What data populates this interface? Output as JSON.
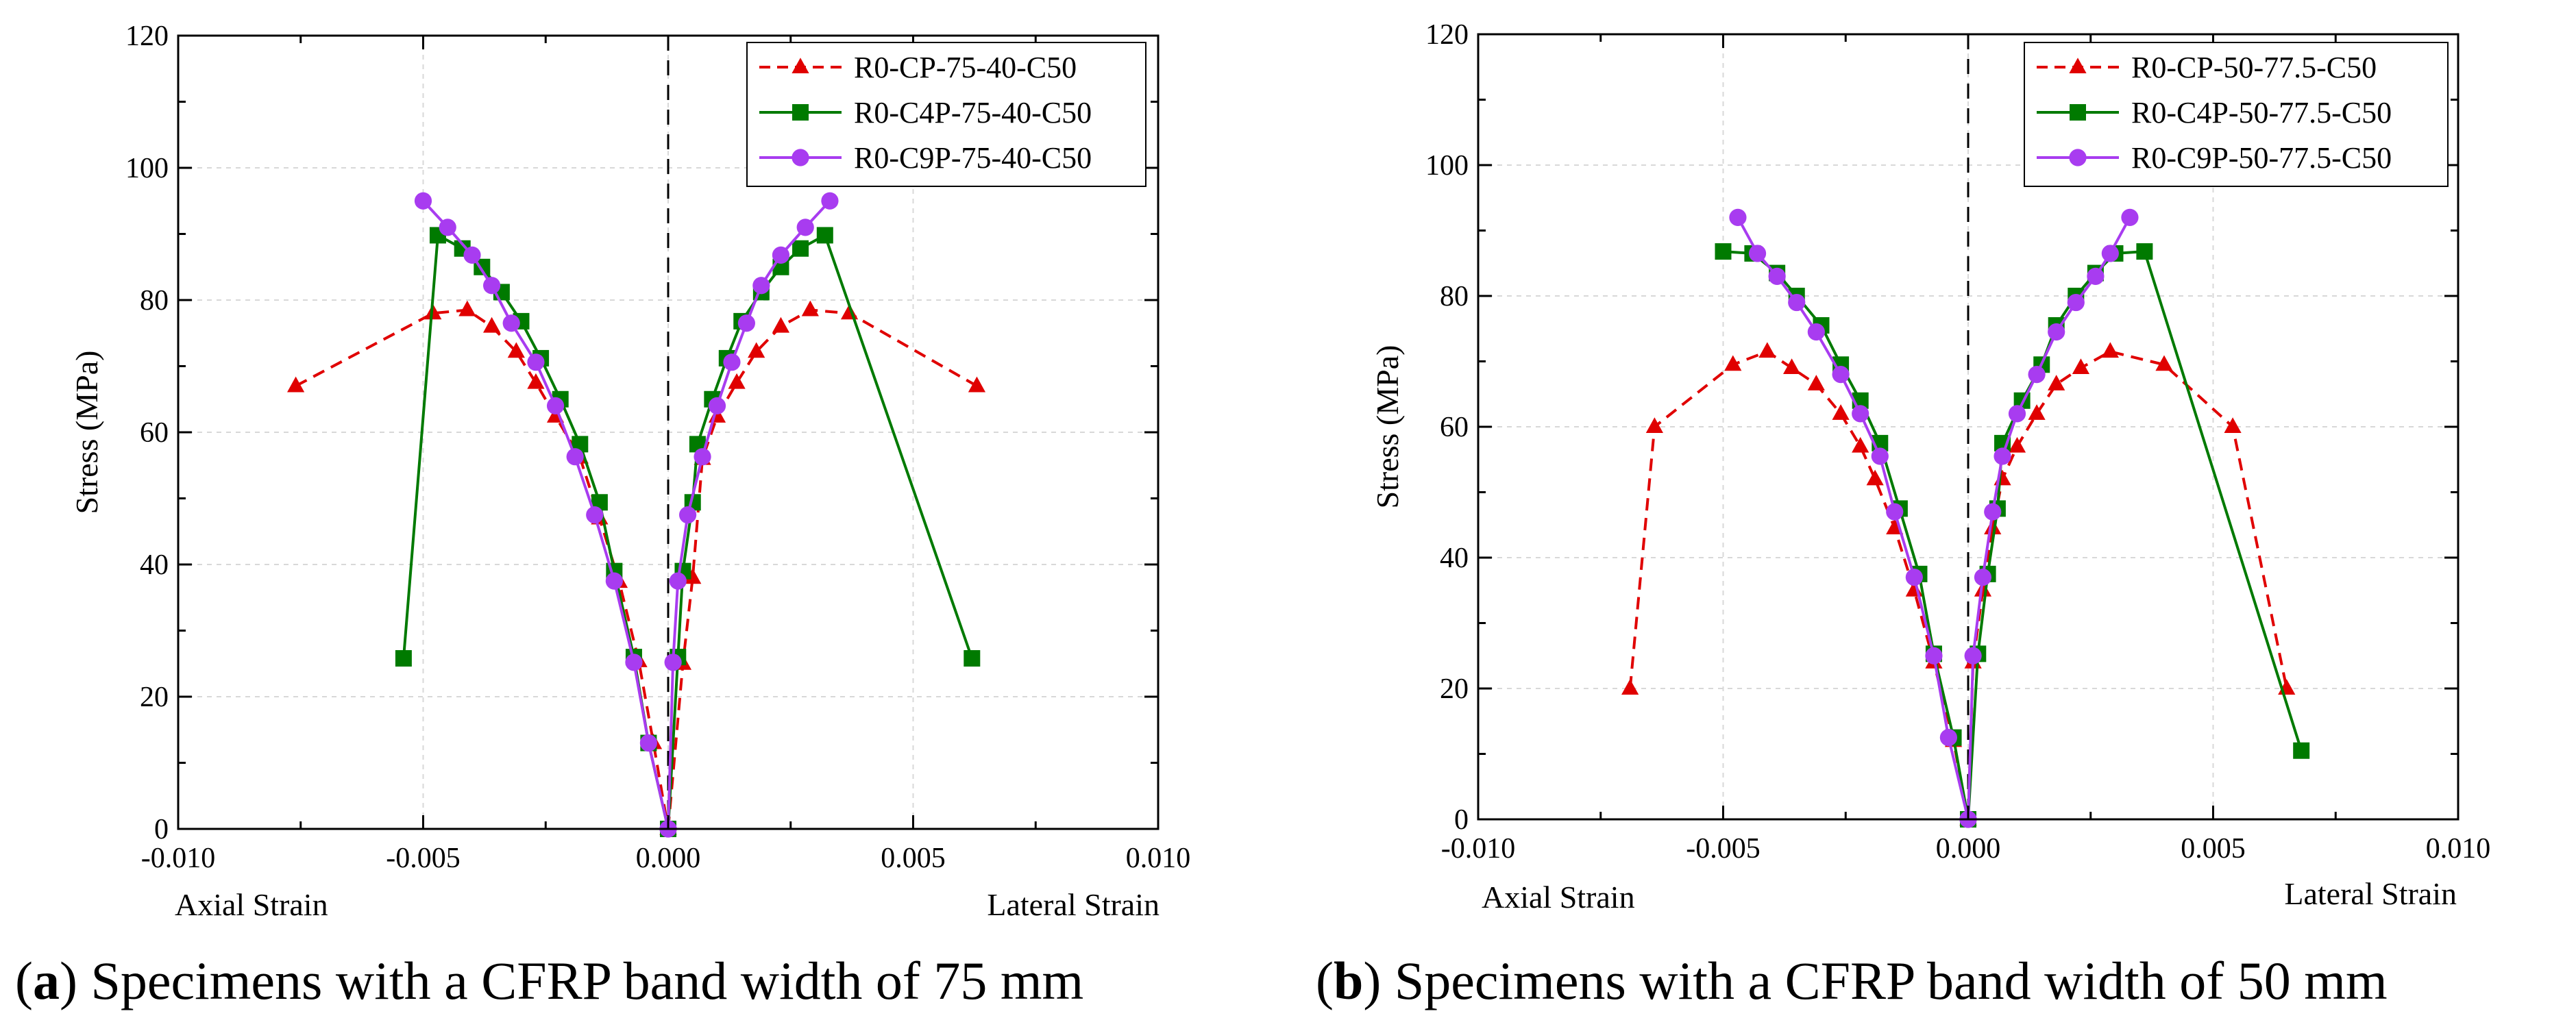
{
  "chart_data": [
    {
      "type": "line",
      "panel_label": "a",
      "caption": "Specimens with a CFRP band width of 75 mm",
      "xlabel": "",
      "xlabel_left": "Axial Strain",
      "xlabel_right": "Lateral Strain",
      "ylabel": "Stress (MPa)",
      "xlim": [
        -0.01,
        0.01
      ],
      "ylim": [
        0,
        120
      ],
      "xticks": [
        "-0.010",
        "-0.005",
        "0.000",
        "0.005",
        "0.010"
      ],
      "yticks": [
        "0",
        "20",
        "40",
        "60",
        "80",
        "100",
        "120"
      ],
      "grid": true,
      "legend_position": "top-right",
      "series": [
        {
          "name": "R0-CP-75-40-C50",
          "color": "#e00000",
          "marker": "triangle",
          "dash": "dashed",
          "axial": [
            [
              -0.0076,
              67.0
            ],
            [
              -0.0048,
              78.0
            ],
            [
              -0.0041,
              78.5
            ],
            [
              -0.0036,
              76.0
            ],
            [
              -0.0031,
              72.2
            ],
            [
              -0.0027,
              67.5
            ],
            [
              -0.0023,
              62.4
            ],
            [
              -0.0018,
              56.2
            ],
            [
              -0.0014,
              47.0
            ],
            [
              -0.001,
              37.4
            ],
            [
              -0.0006,
              25.4
            ],
            [
              -0.0003,
              13.0
            ],
            [
              0.0,
              0.0
            ]
          ],
          "lateral": [
            [
              0.0,
              0.0
            ],
            [
              0.0003,
              25.0
            ],
            [
              0.0005,
              38.0
            ],
            [
              0.0007,
              56.0
            ],
            [
              0.001,
              62.4
            ],
            [
              0.0014,
              67.5
            ],
            [
              0.0018,
              72.2
            ],
            [
              0.0023,
              76.0
            ],
            [
              0.0029,
              78.5
            ],
            [
              0.0037,
              78.0
            ],
            [
              0.0063,
              67.0
            ]
          ]
        },
        {
          "name": "R0-C4P-75-40-C50",
          "color": "#007a00",
          "marker": "square",
          "dash": "solid",
          "axial": [
            [
              -0.0054,
              25.8
            ],
            [
              -0.0047,
              89.8
            ],
            [
              -0.0042,
              87.8
            ],
            [
              -0.0038,
              85.0
            ],
            [
              -0.0034,
              81.2
            ],
            [
              -0.003,
              76.8
            ],
            [
              -0.0026,
              71.2
            ],
            [
              -0.0022,
              65.0
            ],
            [
              -0.0018,
              58.2
            ],
            [
              -0.0014,
              49.4
            ],
            [
              -0.0011,
              39.0
            ],
            [
              -0.0007,
              26.0
            ],
            [
              -0.0004,
              13.0
            ],
            [
              0.0,
              0.0
            ]
          ],
          "lateral": [
            [
              0.0,
              0.0
            ],
            [
              0.0002,
              26.0
            ],
            [
              0.0003,
              39.0
            ],
            [
              0.0005,
              49.4
            ],
            [
              0.0006,
              58.2
            ],
            [
              0.0009,
              65.0
            ],
            [
              0.0012,
              71.2
            ],
            [
              0.0015,
              76.8
            ],
            [
              0.0019,
              81.2
            ],
            [
              0.0023,
              85.0
            ],
            [
              0.0027,
              87.8
            ],
            [
              0.0032,
              89.8
            ],
            [
              0.0062,
              25.8
            ]
          ]
        },
        {
          "name": "R0-C9P-75-40-C50",
          "color": "#a83cf0",
          "marker": "circle",
          "dash": "solid",
          "axial": [
            [
              -0.005,
              95.0
            ],
            [
              -0.0045,
              91.0
            ],
            [
              -0.004,
              86.8
            ],
            [
              -0.0036,
              82.2
            ],
            [
              -0.0032,
              76.5
            ],
            [
              -0.0027,
              70.6
            ],
            [
              -0.0023,
              64.0
            ],
            [
              -0.0019,
              56.3
            ],
            [
              -0.0015,
              47.5
            ],
            [
              -0.0011,
              37.5
            ],
            [
              -0.0007,
              25.2
            ],
            [
              -0.0004,
              13.0
            ],
            [
              0.0,
              0.0
            ]
          ],
          "lateral": [
            [
              0.0,
              0.0
            ],
            [
              0.0001,
              25.2
            ],
            [
              0.0002,
              37.5
            ],
            [
              0.0004,
              47.5
            ],
            [
              0.0007,
              56.3
            ],
            [
              0.001,
              64.0
            ],
            [
              0.0013,
              70.6
            ],
            [
              0.0016,
              76.5
            ],
            [
              0.0019,
              82.2
            ],
            [
              0.0023,
              86.8
            ],
            [
              0.0028,
              91.0
            ],
            [
              0.0033,
              95.0
            ]
          ]
        }
      ]
    },
    {
      "type": "line",
      "panel_label": "b",
      "caption": "Specimens with a CFRP band width of 50 mm",
      "xlabel": "",
      "xlabel_left": "Axial Strain",
      "xlabel_right": "Lateral Strain",
      "ylabel": "Stress (MPa)",
      "xlim": [
        -0.01,
        0.01
      ],
      "ylim": [
        0,
        120
      ],
      "xticks": [
        "-0.010",
        "-0.005",
        "0.000",
        "0.005",
        "0.010"
      ],
      "yticks": [
        "0",
        "20",
        "40",
        "60",
        "80",
        "100",
        "120"
      ],
      "grid": true,
      "legend_position": "top-right",
      "series": [
        {
          "name": "R0-CP-50-77.5-C50",
          "color": "#e00000",
          "marker": "triangle",
          "dash": "dashed",
          "axial": [
            [
              -0.0069,
              20.0
            ],
            [
              -0.0064,
              60.0
            ],
            [
              -0.0048,
              69.5
            ],
            [
              -0.0041,
              71.5
            ],
            [
              -0.0036,
              69.0
            ],
            [
              -0.0031,
              66.5
            ],
            [
              -0.0026,
              62.0
            ],
            [
              -0.0022,
              57.0
            ],
            [
              -0.0019,
              52.0
            ],
            [
              -0.0015,
              44.5
            ],
            [
              -0.0011,
              35.0
            ],
            [
              -0.0007,
              24.0
            ],
            [
              -0.0003,
              12.0
            ],
            [
              0.0,
              0.0
            ]
          ],
          "lateral": [
            [
              0.0,
              0.0
            ],
            [
              0.0001,
              24.0
            ],
            [
              0.0003,
              35.0
            ],
            [
              0.0005,
              44.5
            ],
            [
              0.0007,
              52.0
            ],
            [
              0.001,
              57.0
            ],
            [
              0.0014,
              62.0
            ],
            [
              0.0018,
              66.5
            ],
            [
              0.0023,
              69.0
            ],
            [
              0.0029,
              71.5
            ],
            [
              0.004,
              69.5
            ],
            [
              0.0054,
              60.0
            ],
            [
              0.0065,
              20.0
            ]
          ]
        },
        {
          "name": "R0-C4P-50-77.5-C50",
          "color": "#007a00",
          "marker": "square",
          "dash": "solid",
          "axial": [
            [
              -0.005,
              86.8
            ],
            [
              -0.0044,
              86.5
            ],
            [
              -0.0039,
              83.5
            ],
            [
              -0.0035,
              80.0
            ],
            [
              -0.003,
              75.5
            ],
            [
              -0.0026,
              69.5
            ],
            [
              -0.0022,
              64.0
            ],
            [
              -0.0018,
              57.5
            ],
            [
              -0.0014,
              47.5
            ],
            [
              -0.001,
              37.5
            ],
            [
              -0.0007,
              25.3
            ],
            [
              -0.0003,
              12.5
            ],
            [
              0.0,
              0.0
            ]
          ],
          "lateral": [
            [
              0.0,
              0.0
            ],
            [
              0.0002,
              25.3
            ],
            [
              0.0004,
              37.5
            ],
            [
              0.0006,
              47.5
            ],
            [
              0.0007,
              57.5
            ],
            [
              0.0011,
              64.0
            ],
            [
              0.0015,
              69.5
            ],
            [
              0.0018,
              75.5
            ],
            [
              0.0022,
              80.0
            ],
            [
              0.0026,
              83.5
            ],
            [
              0.003,
              86.5
            ],
            [
              0.0036,
              86.8
            ],
            [
              0.0068,
              10.5
            ]
          ]
        },
        {
          "name": "R0-C9P-50-77.5-C50",
          "color": "#a83cf0",
          "marker": "circle",
          "dash": "solid",
          "axial": [
            [
              -0.0047,
              92.0
            ],
            [
              -0.0043,
              86.5
            ],
            [
              -0.0039,
              83.0
            ],
            [
              -0.0035,
              79.0
            ],
            [
              -0.0031,
              74.5
            ],
            [
              -0.0026,
              68.0
            ],
            [
              -0.0022,
              62.0
            ],
            [
              -0.0018,
              55.5
            ],
            [
              -0.0015,
              47.0
            ],
            [
              -0.0011,
              37.0
            ],
            [
              -0.0007,
              25.0
            ],
            [
              -0.0004,
              12.5
            ],
            [
              0.0,
              0.0
            ]
          ],
          "lateral": [
            [
              0.0,
              0.0
            ],
            [
              0.0001,
              25.0
            ],
            [
              0.0003,
              37.0
            ],
            [
              0.0005,
              47.0
            ],
            [
              0.0007,
              55.5
            ],
            [
              0.001,
              62.0
            ],
            [
              0.0014,
              68.0
            ],
            [
              0.0018,
              74.5
            ],
            [
              0.0022,
              79.0
            ],
            [
              0.0026,
              83.0
            ],
            [
              0.0029,
              86.5
            ],
            [
              0.0033,
              92.0
            ]
          ]
        }
      ]
    }
  ]
}
